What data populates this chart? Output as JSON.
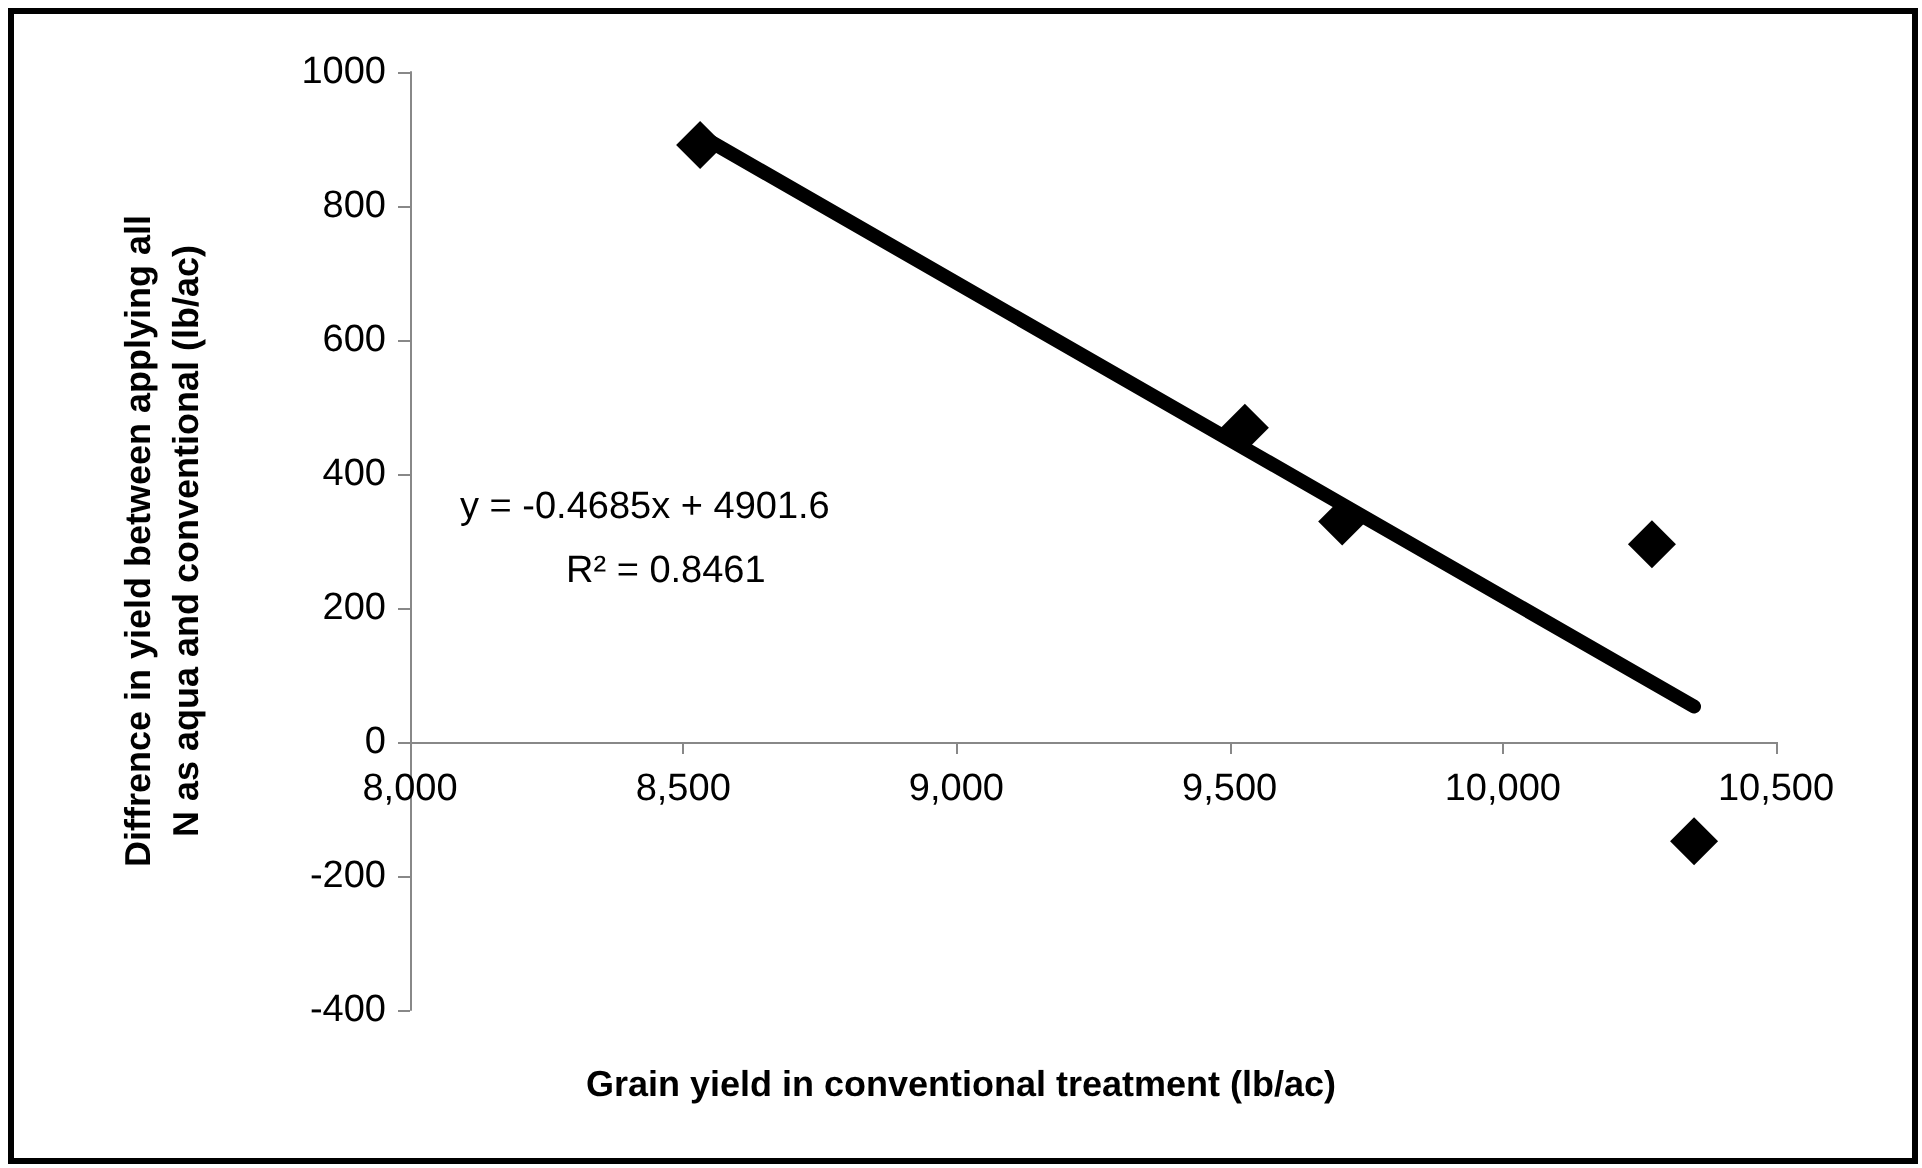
{
  "chart_data": {
    "type": "scatter",
    "xlabel": "Grain yield in conventional treatment (lb/ac)",
    "ylabel": "Diffrence in yield between applying all\nN as aqua and conventional (lb/ac)",
    "annotations": [
      "y = -0.4685x + 4901.6",
      "R² = 0.8461"
    ],
    "xlim": [
      8000,
      10500
    ],
    "xticks": [
      {
        "value": 8000,
        "label": "8,000"
      },
      {
        "value": 8500,
        "label": "8,500"
      },
      {
        "value": 9000,
        "label": "9,000"
      },
      {
        "value": 9500,
        "label": "9,500"
      },
      {
        "value": 10000,
        "label": "10,000"
      },
      {
        "value": 10500,
        "label": "10,500"
      }
    ],
    "ylim": [
      -400,
      1000
    ],
    "yticks": [
      -400,
      -200,
      0,
      200,
      400,
      600,
      800,
      1000
    ],
    "series": [
      {
        "type": "scatter",
        "color": "#000000",
        "marker": "diamond",
        "x": [
          8531,
          9528,
          9706,
          10273,
          10350
        ],
        "values": [
          891,
          469,
          329,
          295,
          -148
        ]
      },
      {
        "type": "line",
        "color": "#000000",
        "marker": "none",
        "line_style": "solid",
        "x": [
          8531,
          10350
        ],
        "values": [
          905,
          53
        ]
      }
    ]
  }
}
